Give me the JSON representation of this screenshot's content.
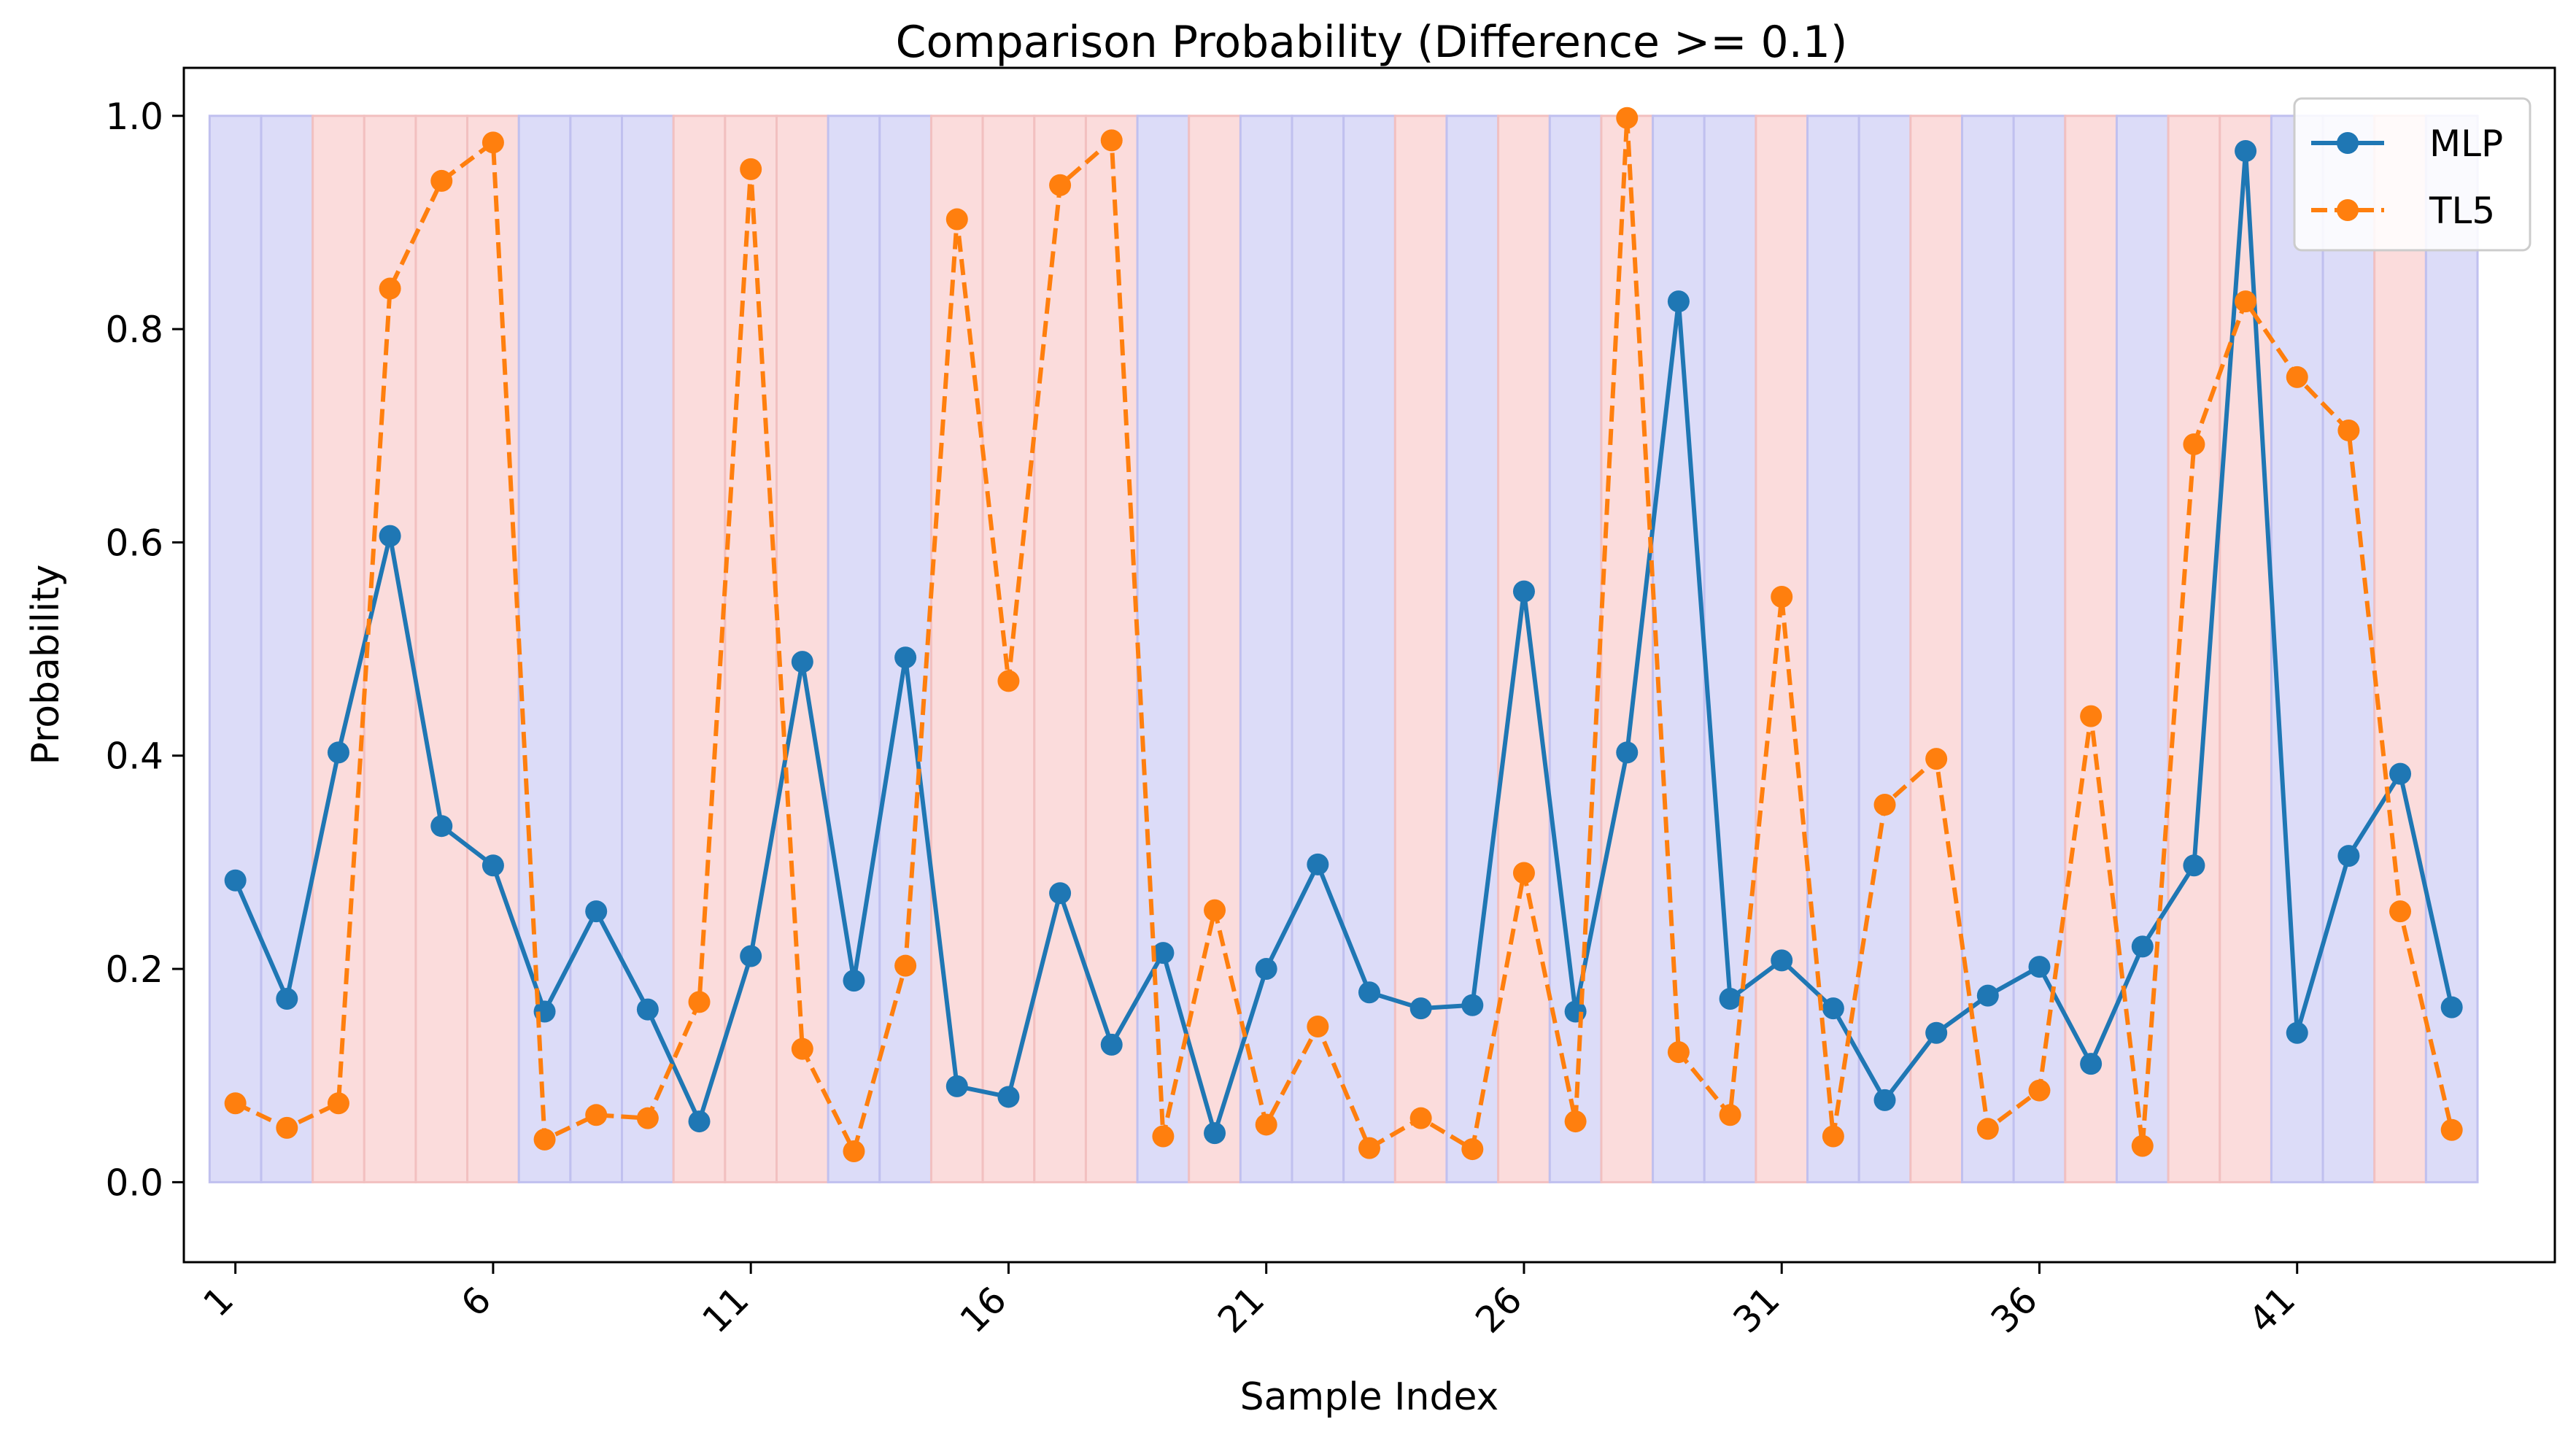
{
  "chart_data": {
    "type": "line",
    "title": "Comparison Probability (Difference >= 0.1)",
    "xlabel": "Sample Index",
    "ylabel": "Probability",
    "ylim": [
      -0.075,
      1.045
    ],
    "xlim": [
      0,
      46
    ],
    "x": [
      1,
      2,
      3,
      4,
      5,
      6,
      7,
      8,
      9,
      10,
      11,
      12,
      13,
      14,
      15,
      16,
      17,
      18,
      19,
      20,
      21,
      22,
      23,
      24,
      25,
      26,
      27,
      28,
      29,
      30,
      31,
      32,
      33,
      34,
      35,
      36,
      37,
      38,
      39,
      40,
      41,
      42,
      43,
      44
    ],
    "xticks": [
      1,
      6,
      11,
      16,
      21,
      26,
      31,
      36,
      41
    ],
    "xtick_labels": [
      "1",
      "6",
      "11",
      "16",
      "21",
      "26",
      "31",
      "36",
      "41"
    ],
    "yticks": [
      0.0,
      0.2,
      0.4,
      0.6,
      0.8,
      1.0
    ],
    "ytick_labels": [
      "0.0",
      "0.2",
      "0.4",
      "0.6",
      "0.8",
      "1.0"
    ],
    "band_top": 1.0,
    "band_colors": {
      "blue": "#dcdcf8",
      "red": "#fbdcdc",
      "blue_edge": "#c0c0ef",
      "red_edge": "#f2c0c0"
    },
    "bands": [
      "blue",
      "blue",
      "red",
      "red",
      "red",
      "red",
      "blue",
      "blue",
      "blue",
      "red",
      "red",
      "red",
      "blue",
      "blue",
      "red",
      "red",
      "red",
      "red",
      "blue",
      "red",
      "blue",
      "blue",
      "blue",
      "red",
      "blue",
      "red",
      "blue",
      "red",
      "blue",
      "blue",
      "red",
      "blue",
      "blue",
      "red",
      "blue",
      "blue",
      "red",
      "blue",
      "red",
      "red",
      "blue",
      "blue",
      "red",
      "blue"
    ],
    "series": [
      {
        "name": "MLP",
        "color": "#1f77b4",
        "style": "solid",
        "values": [
          0.283,
          0.172,
          0.403,
          0.606,
          0.334,
          0.297,
          0.16,
          0.254,
          0.162,
          0.057,
          0.212,
          0.488,
          0.189,
          0.492,
          0.09,
          0.08,
          0.271,
          0.129,
          0.215,
          0.046,
          0.2,
          0.298,
          0.178,
          0.163,
          0.166,
          0.554,
          0.16,
          0.403,
          0.826,
          0.172,
          0.208,
          0.163,
          0.077,
          0.14,
          0.175,
          0.202,
          0.111,
          0.221,
          0.297,
          0.967,
          0.14,
          0.306,
          0.383,
          0.164
        ]
      },
      {
        "name": "TL5",
        "color": "#ff7f0e",
        "style": "dashed",
        "values": [
          0.074,
          0.051,
          0.074,
          0.838,
          0.939,
          0.975,
          0.04,
          0.063,
          0.06,
          0.169,
          0.95,
          0.125,
          0.029,
          0.203,
          0.903,
          0.47,
          0.935,
          0.977,
          0.043,
          0.255,
          0.054,
          0.146,
          0.032,
          0.06,
          0.031,
          0.29,
          0.057,
          0.998,
          0.122,
          0.063,
          0.549,
          0.043,
          0.354,
          0.397,
          0.05,
          0.086,
          0.437,
          0.034,
          0.692,
          0.826,
          0.755,
          0.705,
          0.254,
          0.049
        ]
      }
    ],
    "legend_position": "top-right"
  }
}
